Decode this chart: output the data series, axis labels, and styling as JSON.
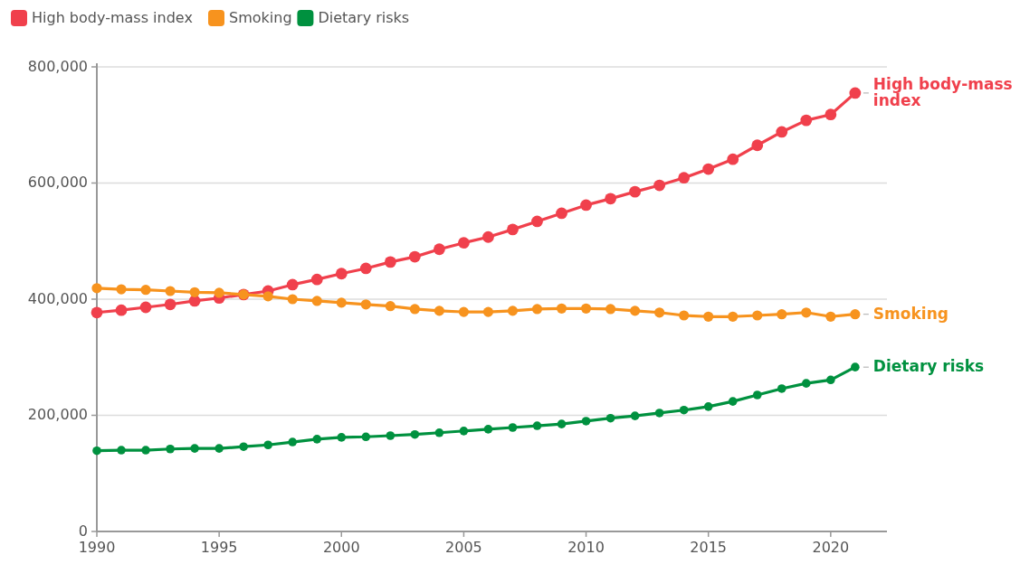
{
  "chart_data": {
    "type": "line",
    "x": [
      1990,
      1991,
      1992,
      1993,
      1994,
      1995,
      1996,
      1997,
      1998,
      1999,
      2000,
      2001,
      2002,
      2003,
      2004,
      2005,
      2006,
      2007,
      2008,
      2009,
      2010,
      2011,
      2012,
      2013,
      2014,
      2015,
      2016,
      2017,
      2018,
      2019,
      2020,
      2021
    ],
    "series": [
      {
        "name": "High body-mass index",
        "color": "#f0404c",
        "values": [
          377000,
          381000,
          386000,
          391000,
          397000,
          402000,
          408000,
          414000,
          425000,
          434000,
          444000,
          453000,
          464000,
          473000,
          486000,
          497000,
          507000,
          520000,
          534000,
          548000,
          562000,
          573000,
          585000,
          596000,
          609000,
          624000,
          641000,
          665000,
          688000,
          708000,
          718000,
          755000
        ]
      },
      {
        "name": "Smoking",
        "color": "#f7931e",
        "values": [
          419000,
          417000,
          416000,
          414000,
          412000,
          411000,
          408000,
          405000,
          400000,
          397000,
          394000,
          391000,
          388000,
          383000,
          380000,
          378000,
          378000,
          380000,
          383000,
          384000,
          384000,
          383000,
          380000,
          377000,
          372000,
          370000,
          370000,
          372000,
          374000,
          377000,
          370000,
          374000
        ]
      },
      {
        "name": "Dietary risks",
        "color": "#00913f",
        "values": [
          139000,
          140000,
          140000,
          142000,
          143000,
          143000,
          146000,
          149000,
          154000,
          159000,
          162000,
          163000,
          165000,
          167000,
          170000,
          173000,
          176000,
          179000,
          182000,
          185000,
          190000,
          195000,
          199000,
          204000,
          209000,
          215000,
          224000,
          235000,
          246000,
          255000,
          261000,
          283000
        ]
      }
    ],
    "xlim": [
      1990,
      2022.3
    ],
    "xticks": [
      1990,
      1995,
      2000,
      2005,
      2010,
      2015,
      2020
    ],
    "ylim": [
      0,
      800000
    ],
    "yticks": [
      {
        "value": 0,
        "label": "0"
      },
      {
        "value": 200000,
        "label": "200,000"
      },
      {
        "value": 400000,
        "label": "400,000"
      },
      {
        "value": 600000,
        "label": "600,000"
      },
      {
        "value": 800000,
        "label": "800,000"
      }
    ],
    "grid": "y",
    "legend": "top left",
    "marker": "circle",
    "line_style": "solid"
  }
}
